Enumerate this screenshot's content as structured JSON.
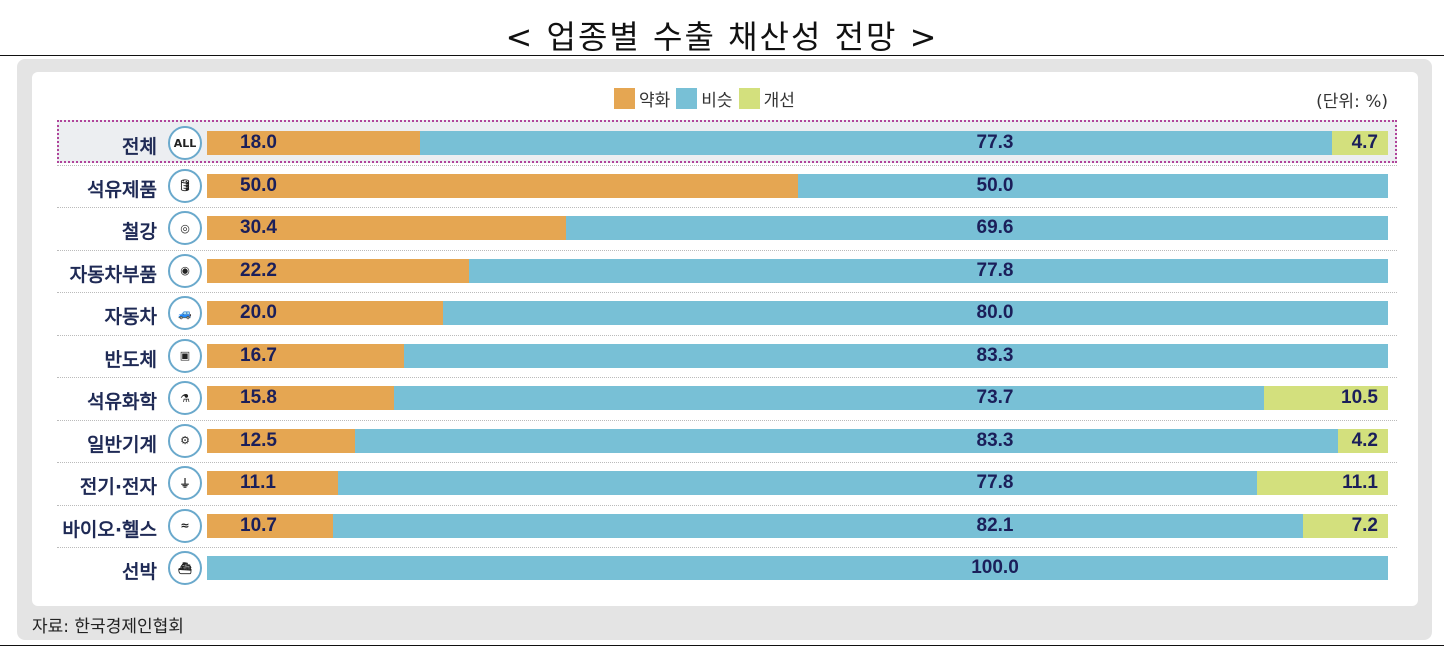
{
  "title": "< 업종별 수출 채산성 전망 >",
  "source": "자료: 한국경제인협회",
  "chart_data": {
    "type": "bar",
    "orientation": "horizontal",
    "stacked": true,
    "unit_label": "(단위: %)",
    "legend_position": "top-center",
    "categories": [
      "전체",
      "석유제품",
      "철강",
      "자동차부품",
      "자동차",
      "반도체",
      "석유화학",
      "일반기계",
      "전기·전자",
      "바이오·헬스",
      "선박"
    ],
    "icons": [
      "all-icon",
      "oil-can-icon",
      "steel-coils-icon",
      "tire-icon",
      "car-icon",
      "chip-icon",
      "chemical-plant-icon",
      "gears-icon",
      "plug-icon",
      "dna-icon",
      "ship-icon"
    ],
    "highlighted_category": "전체",
    "series": [
      {
        "name": "약화",
        "color": "#e5a652",
        "values": [
          18.0,
          50.0,
          30.4,
          22.2,
          20.0,
          16.7,
          15.8,
          12.5,
          11.1,
          10.7,
          null
        ]
      },
      {
        "name": "비슷",
        "color": "#78c0d6",
        "values": [
          77.3,
          50.0,
          69.6,
          77.8,
          80.0,
          83.3,
          73.7,
          83.3,
          77.8,
          82.1,
          100.0
        ]
      },
      {
        "name": "개선",
        "color": "#d3e07d",
        "values": [
          4.7,
          null,
          null,
          null,
          null,
          null,
          10.5,
          4.2,
          11.1,
          7.2,
          null
        ]
      }
    ],
    "xlim": [
      0,
      100
    ]
  }
}
